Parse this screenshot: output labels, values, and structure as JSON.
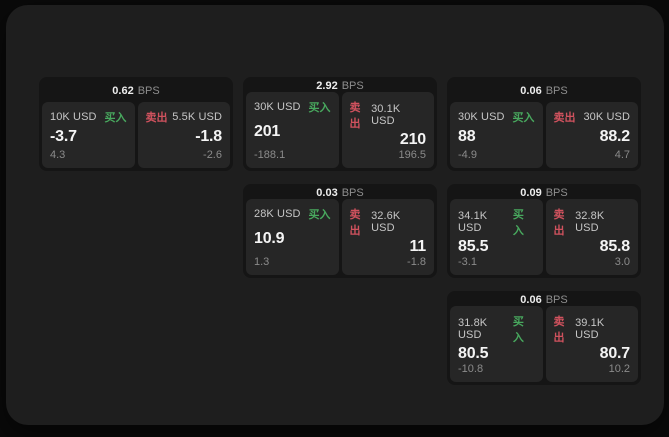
{
  "labels": {
    "bps": "BPS",
    "buy": "买入",
    "sell": "卖出"
  },
  "colors": {
    "background": "#0a0a0a",
    "window_bg": "#1e1e1e",
    "card_bg": "#151515",
    "panel_bg": "#262626",
    "buy_green": "#48a85e",
    "sell_red": "#d0525e",
    "value_text": "#f4f4f4",
    "muted_text": "#8b8b8b"
  },
  "cards": [
    {
      "bps": "0.62",
      "buy": {
        "amount": "10K USD",
        "price": "-3.7",
        "change": "4.3"
      },
      "sell": {
        "amount": "5.5K USD",
        "price": "-1.8",
        "change": "-2.6"
      }
    },
    {
      "bps": "2.92",
      "buy": {
        "amount": "30K USD",
        "price": "201",
        "change": "-188.1"
      },
      "sell": {
        "amount": "30.1K USD",
        "price": "210",
        "change": "196.5"
      }
    },
    {
      "bps": "0.06",
      "buy": {
        "amount": "30K USD",
        "price": "88",
        "change": "-4.9"
      },
      "sell": {
        "amount": "30K USD",
        "price": "88.2",
        "change": "4.7"
      }
    },
    {
      "bps": "0.03",
      "buy": {
        "amount": "28K USD",
        "price": "10.9",
        "change": "1.3"
      },
      "sell": {
        "amount": "32.6K USD",
        "price": "11",
        "change": "-1.8"
      }
    },
    {
      "bps": "0.09",
      "buy": {
        "amount": "34.1K USD",
        "price": "85.5",
        "change": "-3.1"
      },
      "sell": {
        "amount": "32.8K USD",
        "price": "85.8",
        "change": "3.0"
      }
    },
    {
      "bps": "0.06",
      "buy": {
        "amount": "31.8K USD",
        "price": "80.5",
        "change": "-10.8"
      },
      "sell": {
        "amount": "39.1K USD",
        "price": "80.7",
        "change": "10.2"
      }
    }
  ]
}
